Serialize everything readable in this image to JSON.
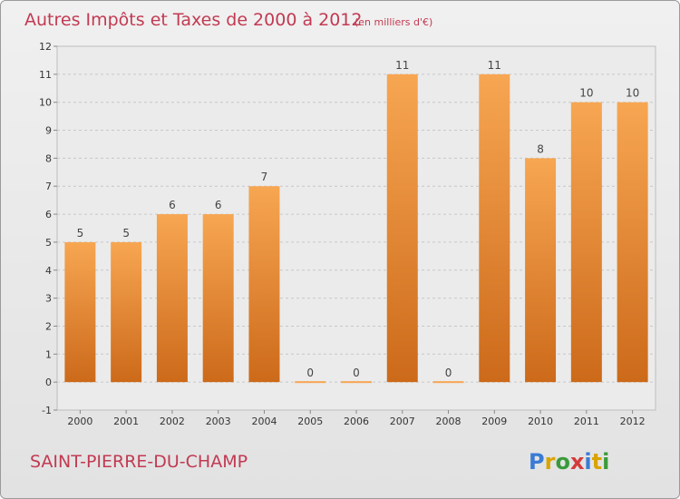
{
  "title": "Autres Impôts et Taxes de 2000 à 2012",
  "unit": "(en milliers d'€)",
  "commune": "SAINT-PIERRE-DU-CHAMP",
  "logo": {
    "letters": [
      "P",
      "r",
      "o",
      "x",
      "i",
      "t",
      "i"
    ],
    "colors": [
      "#3a7bd5",
      "#d9a400",
      "#3a9a3a",
      "#d43b3b",
      "#3a7bd5",
      "#d9a400",
      "#3a9a3a"
    ]
  },
  "colors": {
    "bar_top": "#f7a652",
    "bar_bottom": "#cc6a1a",
    "title": "#c23a52"
  },
  "chart_data": {
    "type": "bar",
    "title": "Autres Impôts et Taxes de 2000 à 2012",
    "categories": [
      "2000",
      "2001",
      "2002",
      "2003",
      "2004",
      "2005",
      "2006",
      "2007",
      "2008",
      "2009",
      "2010",
      "2011",
      "2012"
    ],
    "values": [
      5,
      5,
      6,
      6,
      7,
      0,
      0,
      11,
      0,
      11,
      8,
      10,
      10
    ],
    "data_labels": [
      "5",
      "5",
      "6",
      "6",
      "7",
      "0",
      "0",
      "11",
      "0",
      "11",
      "8",
      "10",
      "10"
    ],
    "ylim": [
      -1,
      12
    ],
    "yticks": [
      -1,
      0,
      1,
      2,
      3,
      4,
      5,
      6,
      7,
      8,
      9,
      10,
      11,
      12
    ],
    "ytick_labels": [
      "-1",
      "0",
      "1",
      "2",
      "3",
      "4",
      "5",
      "6",
      "7",
      "8",
      "9",
      "10",
      "11",
      "12"
    ],
    "grid": "horizontal dashed",
    "legend": "none"
  }
}
